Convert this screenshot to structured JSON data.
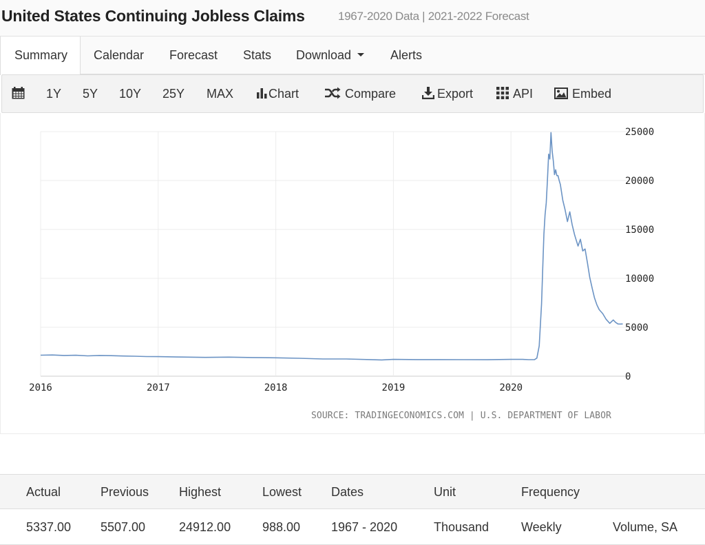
{
  "header": {
    "title": "United States Continuing Jobless Claims",
    "subtitle": "1967-2020 Data | 2021-2022 Forecast"
  },
  "tabs": [
    {
      "label": "Summary",
      "active": true
    },
    {
      "label": "Calendar"
    },
    {
      "label": "Forecast"
    },
    {
      "label": "Stats"
    },
    {
      "label": "Download"
    },
    {
      "label": "Alerts"
    }
  ],
  "toolbar": {
    "calendar_icon": "calendar-icon",
    "ranges": [
      "1Y",
      "5Y",
      "10Y",
      "25Y",
      "MAX"
    ],
    "chart_label": "Chart",
    "compare_label": "Compare",
    "export_label": "Export",
    "api_label": "API",
    "embed_label": "Embed"
  },
  "chart_data": {
    "type": "line",
    "line_color": "#6b93c4",
    "grid": true,
    "title": "",
    "xlabel": "",
    "ylabel": "",
    "xlim": [
      2016.0,
      2021.0
    ],
    "ylim": [
      0,
      25000
    ],
    "x_ticks": [
      2016,
      2017,
      2018,
      2019,
      2020
    ],
    "x_tick_labels": [
      "2016",
      "2017",
      "2018",
      "2019",
      "2020"
    ],
    "y_ticks": [
      0,
      5000,
      10000,
      15000,
      20000,
      25000
    ],
    "y_tick_labels": [
      "0",
      "5000",
      "10000",
      "15000",
      "20000",
      "25000"
    ],
    "series": [
      {
        "x": [
          2016.0,
          2016.1,
          2016.2,
          2016.3,
          2016.4,
          2016.5,
          2016.6,
          2016.7,
          2016.8,
          2016.9,
          2017.0,
          2017.2,
          2017.4,
          2017.6,
          2017.8,
          2018.0,
          2018.2,
          2018.4,
          2018.6,
          2018.8,
          2018.9,
          2019.0,
          2019.2,
          2019.4,
          2019.6,
          2019.8,
          2020.0,
          2020.1,
          2020.15,
          2020.2,
          2020.22,
          2020.24,
          2020.26,
          2020.27,
          2020.28,
          2020.29,
          2020.3,
          2020.31,
          2020.32,
          2020.33,
          2020.34,
          2020.35,
          2020.36,
          2020.37,
          2020.38,
          2020.39,
          2020.4,
          2020.41,
          2020.42,
          2020.44,
          2020.46,
          2020.48,
          2020.5,
          2020.52,
          2020.54,
          2020.55,
          2020.57,
          2020.59,
          2020.61,
          2020.63,
          2020.65,
          2020.67,
          2020.69,
          2020.71,
          2020.73,
          2020.75,
          2020.78,
          2020.81,
          2020.84,
          2020.87,
          2020.89,
          2020.91,
          2020.93,
          2020.95
        ],
        "y": [
          2150,
          2170,
          2120,
          2140,
          2080,
          2120,
          2100,
          2060,
          2040,
          2010,
          2000,
          1960,
          1920,
          1950,
          1910,
          1880,
          1830,
          1760,
          1760,
          1700,
          1660,
          1720,
          1700,
          1700,
          1690,
          1680,
          1720,
          1720,
          1690,
          1700,
          1850,
          3100,
          7400,
          11000,
          14500,
          16500,
          17700,
          20000,
          22700,
          22200,
          24900,
          23000,
          22000,
          20600,
          21100,
          20500,
          20500,
          20000,
          19600,
          18000,
          17000,
          15800,
          16800,
          15500,
          14500,
          14100,
          13300,
          14000,
          12800,
          13000,
          11600,
          10100,
          9000,
          8000,
          7300,
          6800,
          6400,
          5800,
          5400,
          5750,
          5500,
          5340,
          5330,
          5337
        ]
      }
    ]
  },
  "source": "SOURCE: TRADINGECONOMICS.COM | U.S. DEPARTMENT OF LABOR",
  "stats": {
    "headers": [
      "Actual",
      "Previous",
      "Highest",
      "Lowest",
      "Dates",
      "Unit",
      "Frequency",
      ""
    ],
    "values": [
      "5337.00",
      "5507.00",
      "24912.00",
      "988.00",
      "1967 - 2020",
      "Thousand",
      "Weekly",
      "Volume, SA"
    ]
  }
}
